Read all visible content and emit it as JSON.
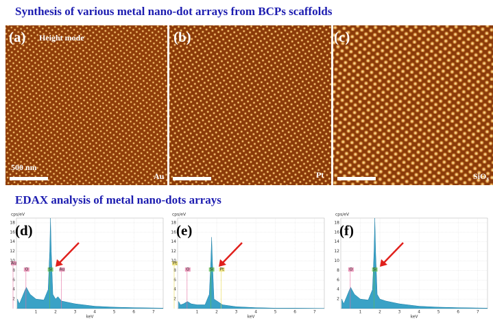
{
  "title": "Synthesis of various metal nano-dot arrays from BCPs scaffolds",
  "afm_panels": [
    {
      "label": "(a)",
      "mode": "Height mode",
      "scale_bar": "500 nm",
      "material": "Au"
    },
    {
      "label": "(b)",
      "material": "Pt"
    },
    {
      "label": "(c)",
      "material": "SiO",
      "material_subscript": "x"
    }
  ],
  "edax_heading": "EDAX analysis of metal nano-dots arrays",
  "chart_data": [
    {
      "type": "area",
      "label": "(d)",
      "y_label": "cps/eV",
      "x_label": "keV",
      "color": "#3aa2c6",
      "xlim": [
        0,
        7.5
      ],
      "xticks": [
        1,
        2,
        3,
        4,
        5,
        6,
        7
      ],
      "ylim": [
        0,
        19
      ],
      "yticks": [
        2,
        4,
        6,
        8,
        10,
        12,
        14,
        16,
        18
      ],
      "grid": true,
      "elements": [
        "Au",
        "O",
        "Si",
        "Au"
      ],
      "x": [
        0.05,
        0.15,
        0.3,
        0.5,
        0.7,
        1.0,
        1.4,
        1.62,
        1.7,
        1.74,
        1.78,
        1.86,
        2.0,
        2.12,
        2.3,
        3.0,
        4.0,
        5.0,
        6.0,
        7.5
      ],
      "values": [
        2,
        1,
        2.5,
        4.5,
        3,
        2,
        1.8,
        4,
        12,
        19,
        12,
        3,
        2,
        2.5,
        1.6,
        1,
        0.5,
        0.3,
        0.2,
        0.1
      ]
    },
    {
      "type": "area",
      "label": "(e)",
      "y_label": "cps/eV",
      "x_label": "keV",
      "color": "#3aa2c6",
      "xlim": [
        0,
        7.5
      ],
      "xticks": [
        1,
        2,
        3,
        4,
        5,
        6,
        7
      ],
      "ylim": [
        0,
        19
      ],
      "yticks": [
        2,
        4,
        6,
        8,
        10,
        12,
        14,
        16,
        18
      ],
      "grid": true,
      "elements": [
        "Pt",
        "O",
        "Si",
        "Pt"
      ],
      "x": [
        0.05,
        0.15,
        0.3,
        0.5,
        0.7,
        1.0,
        1.4,
        1.62,
        1.7,
        1.74,
        1.78,
        1.86,
        2.05,
        2.3,
        3.0,
        4.0,
        5.0,
        6.0,
        7.5
      ],
      "values": [
        1.5,
        0.8,
        1,
        1.5,
        1,
        0.8,
        0.8,
        3,
        10,
        15,
        10,
        2,
        1.5,
        0.8,
        0.4,
        0.2,
        0.1,
        0.1,
        0.05
      ]
    },
    {
      "type": "area",
      "label": "(f)",
      "y_label": "cps/eV",
      "x_label": "keV",
      "color": "#3aa2c6",
      "xlim": [
        0,
        7.5
      ],
      "xticks": [
        1,
        2,
        3,
        4,
        5,
        6,
        7
      ],
      "ylim": [
        0,
        19
      ],
      "yticks": [
        2,
        4,
        6,
        8,
        10,
        12,
        14,
        16,
        18
      ],
      "grid": true,
      "elements": [
        "O",
        "Si"
      ],
      "x": [
        0.05,
        0.15,
        0.3,
        0.5,
        0.7,
        1.0,
        1.4,
        1.62,
        1.7,
        1.74,
        1.78,
        1.86,
        2.0,
        2.3,
        3.0,
        4.0,
        5.0,
        6.0,
        7.5
      ],
      "values": [
        2,
        1,
        2.5,
        4.5,
        3,
        2,
        1.8,
        4,
        12,
        19,
        12,
        3,
        2,
        1.6,
        1,
        0.5,
        0.3,
        0.2,
        0.1
      ]
    }
  ]
}
